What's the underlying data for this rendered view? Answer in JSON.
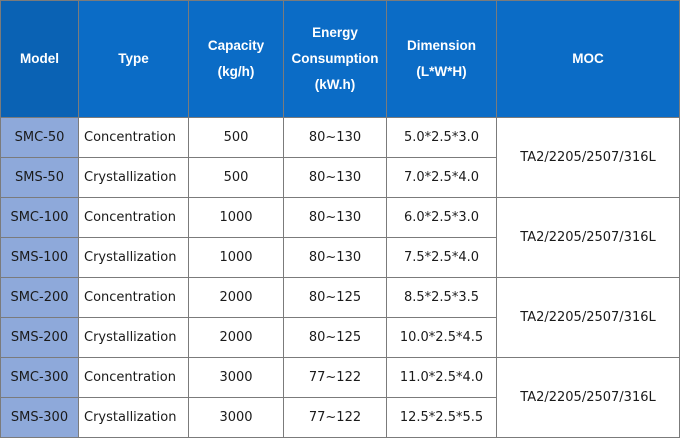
{
  "headers": {
    "model": "Model",
    "type": "Type",
    "capacity_line1": "Capacity",
    "capacity_line2": "(kg/h)",
    "energy_line1": "Energy",
    "energy_line2": "Consumption",
    "energy_line3": "(kW.h)",
    "dimension_line1": "Dimension",
    "dimension_line2": "(L*W*H)",
    "moc": "MOC"
  },
  "colors": {
    "header_bg": "#0b6cc6",
    "model_col_bg": "#8ea9da"
  },
  "rows": [
    {
      "model": "SMC-50",
      "type": "Concentration",
      "capacity": "500",
      "energy": "80~130",
      "dimension": "5.0*2.5*3.0"
    },
    {
      "model": "SMS-50",
      "type": "Crystallization",
      "capacity": "500",
      "energy": "80~130",
      "dimension": "7.0*2.5*4.0"
    },
    {
      "model": "SMC-100",
      "type": "Concentration",
      "capacity": "1000",
      "energy": "80~130",
      "dimension": "6.0*2.5*3.0"
    },
    {
      "model": "SMS-100",
      "type": "Crystallization",
      "capacity": "1000",
      "energy": "80~130",
      "dimension": "7.5*2.5*4.0"
    },
    {
      "model": "SMC-200",
      "type": "Concentration",
      "capacity": "2000",
      "energy": "80~125",
      "dimension": "8.5*2.5*3.5"
    },
    {
      "model": "SMS-200",
      "type": "Crystallization",
      "capacity": "2000",
      "energy": "80~125",
      "dimension": "10.0*2.5*4.5"
    },
    {
      "model": "SMC-300",
      "type": "Concentration",
      "capacity": "3000",
      "energy": "77~122",
      "dimension": "11.0*2.5*4.0"
    },
    {
      "model": "SMS-300",
      "type": "Crystallization",
      "capacity": "3000",
      "energy": "77~122",
      "dimension": "12.5*2.5*5.5"
    }
  ],
  "moc_groups": [
    "TA2/2205/2507/316L",
    "TA2/2205/2507/316L",
    "TA2/2205/2507/316L",
    "TA2/2205/2507/316L"
  ]
}
